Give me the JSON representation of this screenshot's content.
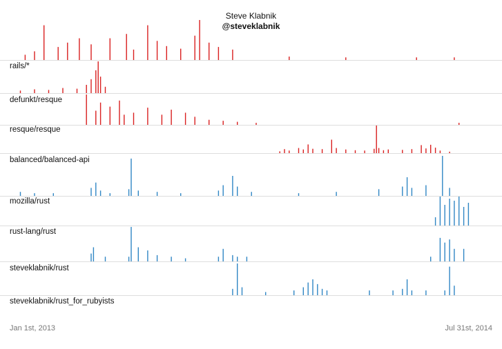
{
  "header": {
    "name": "Steve Klabnik",
    "handle": "@steveklabnik"
  },
  "axis": {
    "start_label": "Jan 1st, 2013",
    "end_label": "Jul 31st, 2014"
  },
  "colors": {
    "red": "#d91f1f",
    "blue": "#2f86c4",
    "rule": "#dddddd"
  },
  "chart_data": {
    "type": "bar",
    "title": "",
    "x_range": [
      "2013-01-01",
      "2014-07-31"
    ],
    "series": [
      {
        "name": "rails/*",
        "color": "red",
        "values": [
          [
            0.02,
            0.6
          ],
          [
            0.04,
            1
          ],
          [
            0.06,
            4
          ],
          [
            0.09,
            1.5
          ],
          [
            0.11,
            2
          ],
          [
            0.135,
            2.5
          ],
          [
            0.16,
            1.8
          ],
          [
            0.2,
            2.5
          ],
          [
            0.235,
            3
          ],
          [
            0.25,
            1.2
          ],
          [
            0.28,
            4
          ],
          [
            0.3,
            2.2
          ],
          [
            0.32,
            1.6
          ],
          [
            0.35,
            1.3
          ],
          [
            0.38,
            2.8
          ],
          [
            0.39,
            4.6
          ],
          [
            0.41,
            2
          ],
          [
            0.43,
            1.5
          ],
          [
            0.46,
            1.2
          ],
          [
            0.58,
            0.4
          ],
          [
            0.7,
            0.3
          ],
          [
            0.85,
            0.3
          ],
          [
            0.93,
            0.3
          ]
        ]
      },
      {
        "name": "defunkt/resque",
        "color": "red",
        "values": [
          [
            0.01,
            0.4
          ],
          [
            0.04,
            0.6
          ],
          [
            0.07,
            0.5
          ],
          [
            0.1,
            0.8
          ],
          [
            0.13,
            0.7
          ],
          [
            0.15,
            1.3
          ],
          [
            0.16,
            2.2
          ],
          [
            0.17,
            3.6
          ],
          [
            0.175,
            5
          ],
          [
            0.18,
            2.6
          ],
          [
            0.19,
            1
          ]
        ]
      },
      {
        "name": "resque/resque",
        "color": "red",
        "values": [
          [
            0.15,
            3
          ],
          [
            0.17,
            1.4
          ],
          [
            0.18,
            2.2
          ],
          [
            0.2,
            1.8
          ],
          [
            0.22,
            2.4
          ],
          [
            0.23,
            1
          ],
          [
            0.25,
            1.2
          ],
          [
            0.28,
            1.7
          ],
          [
            0.31,
            1
          ],
          [
            0.33,
            1.5
          ],
          [
            0.36,
            1.2
          ],
          [
            0.38,
            0.8
          ],
          [
            0.41,
            0.5
          ],
          [
            0.44,
            0.4
          ],
          [
            0.47,
            0.3
          ],
          [
            0.51,
            0.2
          ],
          [
            0.94,
            0.2
          ]
        ]
      },
      {
        "name": "balanced/balanced-api",
        "color": "red",
        "values": [
          [
            0.56,
            0.5
          ],
          [
            0.57,
            1.1
          ],
          [
            0.58,
            0.7
          ],
          [
            0.6,
            1.4
          ],
          [
            0.61,
            1
          ],
          [
            0.62,
            2.4
          ],
          [
            0.63,
            1.2
          ],
          [
            0.65,
            1.1
          ],
          [
            0.67,
            3.7
          ],
          [
            0.68,
            1.4
          ],
          [
            0.7,
            1
          ],
          [
            0.72,
            0.8
          ],
          [
            0.74,
            0.7
          ],
          [
            0.76,
            1.2
          ],
          [
            0.765,
            7.6
          ],
          [
            0.77,
            1.4
          ],
          [
            0.78,
            0.8
          ],
          [
            0.79,
            1
          ],
          [
            0.82,
            0.9
          ],
          [
            0.84,
            1.1
          ],
          [
            0.86,
            2.2
          ],
          [
            0.87,
            1.3
          ],
          [
            0.88,
            2.3
          ],
          [
            0.89,
            1.5
          ],
          [
            0.9,
            0.7
          ],
          [
            0.92,
            0.4
          ]
        ]
      },
      {
        "name": "mozilla/rust",
        "color": "blue",
        "values": [
          [
            0.01,
            0.3
          ],
          [
            0.04,
            0.2
          ],
          [
            0.08,
            0.2
          ],
          [
            0.16,
            0.6
          ],
          [
            0.17,
            1
          ],
          [
            0.18,
            0.4
          ],
          [
            0.2,
            0.2
          ],
          [
            0.24,
            0.5
          ],
          [
            0.245,
            2.8
          ],
          [
            0.26,
            0.4
          ],
          [
            0.3,
            0.3
          ],
          [
            0.35,
            0.2
          ],
          [
            0.43,
            0.4
          ],
          [
            0.44,
            0.8
          ],
          [
            0.46,
            1.5
          ],
          [
            0.47,
            0.7
          ],
          [
            0.5,
            0.3
          ],
          [
            0.6,
            0.2
          ],
          [
            0.68,
            0.3
          ],
          [
            0.77,
            0.5
          ],
          [
            0.82,
            0.7
          ],
          [
            0.83,
            1.4
          ],
          [
            0.84,
            0.6
          ],
          [
            0.87,
            0.8
          ],
          [
            0.905,
            3
          ],
          [
            0.92,
            0.6
          ]
        ]
      },
      {
        "name": "rust-lang/rust",
        "color": "blue",
        "values": [
          [
            0.89,
            0.8
          ],
          [
            0.9,
            2.8
          ],
          [
            0.91,
            2
          ],
          [
            0.92,
            2.6
          ],
          [
            0.93,
            2.4
          ],
          [
            0.94,
            2.8
          ],
          [
            0.95,
            1.8
          ],
          [
            0.96,
            2.2
          ]
        ]
      },
      {
        "name": "steveklabnik/rust",
        "color": "blue",
        "values": [
          [
            0.16,
            0.5
          ],
          [
            0.165,
            0.9
          ],
          [
            0.19,
            0.3
          ],
          [
            0.24,
            0.3
          ],
          [
            0.245,
            2.2
          ],
          [
            0.26,
            0.9
          ],
          [
            0.28,
            0.7
          ],
          [
            0.3,
            0.4
          ],
          [
            0.33,
            0.3
          ],
          [
            0.36,
            0.2
          ],
          [
            0.43,
            0.3
          ],
          [
            0.44,
            0.8
          ],
          [
            0.46,
            0.4
          ],
          [
            0.47,
            0.3
          ],
          [
            0.49,
            0.3
          ],
          [
            0.88,
            0.3
          ],
          [
            0.9,
            1.5
          ],
          [
            0.91,
            1.2
          ],
          [
            0.92,
            1.4
          ],
          [
            0.93,
            0.8
          ],
          [
            0.95,
            0.8
          ]
        ]
      },
      {
        "name": "steveklabnik/rust_for_rubyists",
        "color": "blue",
        "values": [
          [
            0.46,
            0.4
          ],
          [
            0.47,
            2
          ],
          [
            0.48,
            0.5
          ],
          [
            0.53,
            0.2
          ],
          [
            0.59,
            0.3
          ],
          [
            0.61,
            0.5
          ],
          [
            0.62,
            0.8
          ],
          [
            0.63,
            1
          ],
          [
            0.64,
            0.7
          ],
          [
            0.65,
            0.4
          ],
          [
            0.66,
            0.3
          ],
          [
            0.75,
            0.3
          ],
          [
            0.8,
            0.3
          ],
          [
            0.82,
            0.4
          ],
          [
            0.83,
            1
          ],
          [
            0.84,
            0.3
          ],
          [
            0.87,
            0.3
          ],
          [
            0.91,
            0.3
          ],
          [
            0.92,
            1.8
          ],
          [
            0.93,
            0.6
          ]
        ]
      }
    ]
  }
}
